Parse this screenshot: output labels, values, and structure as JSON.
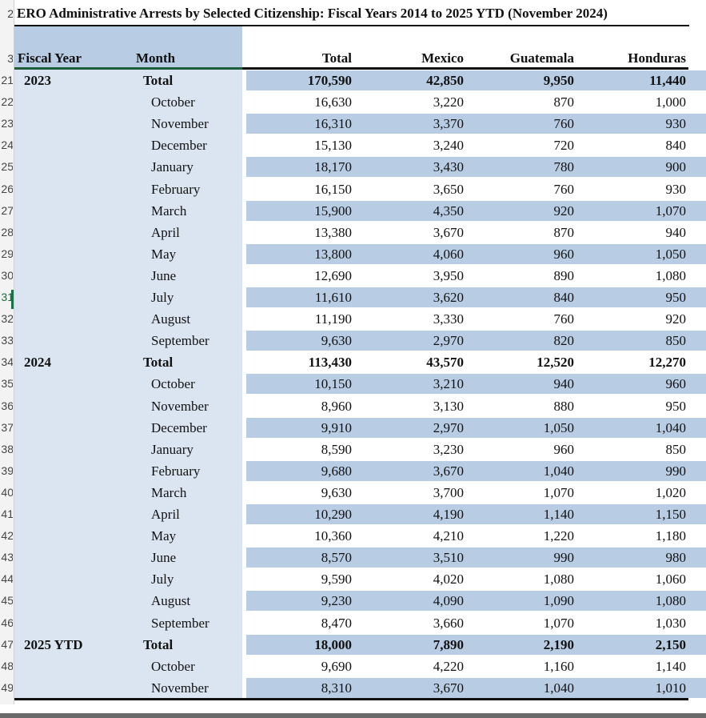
{
  "title": "ERO Administrative Arrests by Selected Citizenship: Fiscal Years 2014 to 2025 YTD (November 2024)",
  "headers": {
    "fiscal_year": "Fiscal Year",
    "month": "Month",
    "total": "Total",
    "mexico": "Mexico",
    "guatemala": "Guatemala",
    "honduras": "Honduras"
  },
  "row_numbers": [
    "2",
    "3",
    "21",
    "22",
    "23",
    "24",
    "25",
    "26",
    "27",
    "28",
    "29",
    "30",
    "31",
    "32",
    "33",
    "34",
    "35",
    "36",
    "37",
    "38",
    "39",
    "40",
    "41",
    "42",
    "43",
    "44",
    "45",
    "46",
    "47",
    "48",
    "49"
  ],
  "rows": [
    {
      "fy": "2023",
      "month": "Total",
      "total": "170,590",
      "mexico": "42,850",
      "guatemala": "9,950",
      "honduras": "11,440",
      "bold": true,
      "band": true
    },
    {
      "fy": "",
      "month": "October",
      "total": "16,630",
      "mexico": "3,220",
      "guatemala": "870",
      "honduras": "1,000",
      "bold": false,
      "band": false
    },
    {
      "fy": "",
      "month": "November",
      "total": "16,310",
      "mexico": "3,370",
      "guatemala": "760",
      "honduras": "930",
      "bold": false,
      "band": true
    },
    {
      "fy": "",
      "month": "December",
      "total": "15,130",
      "mexico": "3,240",
      "guatemala": "720",
      "honduras": "840",
      "bold": false,
      "band": false
    },
    {
      "fy": "",
      "month": "January",
      "total": "18,170",
      "mexico": "3,430",
      "guatemala": "780",
      "honduras": "900",
      "bold": false,
      "band": true
    },
    {
      "fy": "",
      "month": "February",
      "total": "16,150",
      "mexico": "3,650",
      "guatemala": "760",
      "honduras": "930",
      "bold": false,
      "band": false
    },
    {
      "fy": "",
      "month": "March",
      "total": "15,900",
      "mexico": "4,350",
      "guatemala": "920",
      "honduras": "1,070",
      "bold": false,
      "band": true
    },
    {
      "fy": "",
      "month": "April",
      "total": "13,380",
      "mexico": "3,670",
      "guatemala": "870",
      "honduras": "940",
      "bold": false,
      "band": false
    },
    {
      "fy": "",
      "month": "May",
      "total": "13,800",
      "mexico": "4,060",
      "guatemala": "960",
      "honduras": "1,050",
      "bold": false,
      "band": true
    },
    {
      "fy": "",
      "month": "June",
      "total": "12,690",
      "mexico": "3,950",
      "guatemala": "890",
      "honduras": "1,080",
      "bold": false,
      "band": false
    },
    {
      "fy": "",
      "month": "July",
      "total": "11,610",
      "mexico": "3,620",
      "guatemala": "840",
      "honduras": "950",
      "bold": false,
      "band": true
    },
    {
      "fy": "",
      "month": "August",
      "total": "11,190",
      "mexico": "3,330",
      "guatemala": "760",
      "honduras": "920",
      "bold": false,
      "band": false
    },
    {
      "fy": "",
      "month": "September",
      "total": "9,630",
      "mexico": "2,970",
      "guatemala": "820",
      "honduras": "850",
      "bold": false,
      "band": true
    },
    {
      "fy": "2024",
      "month": "Total",
      "total": "113,430",
      "mexico": "43,570",
      "guatemala": "12,520",
      "honduras": "12,270",
      "bold": true,
      "band": false
    },
    {
      "fy": "",
      "month": "October",
      "total": "10,150",
      "mexico": "3,210",
      "guatemala": "940",
      "honduras": "960",
      "bold": false,
      "band": true
    },
    {
      "fy": "",
      "month": "November",
      "total": "8,960",
      "mexico": "3,130",
      "guatemala": "880",
      "honduras": "950",
      "bold": false,
      "band": false
    },
    {
      "fy": "",
      "month": "December",
      "total": "9,910",
      "mexico": "2,970",
      "guatemala": "1,050",
      "honduras": "1,040",
      "bold": false,
      "band": true
    },
    {
      "fy": "",
      "month": "January",
      "total": "8,590",
      "mexico": "3,230",
      "guatemala": "960",
      "honduras": "850",
      "bold": false,
      "band": false
    },
    {
      "fy": "",
      "month": "February",
      "total": "9,680",
      "mexico": "3,670",
      "guatemala": "1,040",
      "honduras": "990",
      "bold": false,
      "band": true
    },
    {
      "fy": "",
      "month": "March",
      "total": "9,630",
      "mexico": "3,700",
      "guatemala": "1,070",
      "honduras": "1,020",
      "bold": false,
      "band": false
    },
    {
      "fy": "",
      "month": "April",
      "total": "10,290",
      "mexico": "4,190",
      "guatemala": "1,140",
      "honduras": "1,150",
      "bold": false,
      "band": true
    },
    {
      "fy": "",
      "month": "May",
      "total": "10,360",
      "mexico": "4,210",
      "guatemala": "1,220",
      "honduras": "1,180",
      "bold": false,
      "band": false
    },
    {
      "fy": "",
      "month": "June",
      "total": "8,570",
      "mexico": "3,510",
      "guatemala": "990",
      "honduras": "980",
      "bold": false,
      "band": true
    },
    {
      "fy": "",
      "month": "July",
      "total": "9,590",
      "mexico": "4,020",
      "guatemala": "1,080",
      "honduras": "1,060",
      "bold": false,
      "band": false
    },
    {
      "fy": "",
      "month": "August",
      "total": "9,230",
      "mexico": "4,090",
      "guatemala": "1,090",
      "honduras": "1,080",
      "bold": false,
      "band": true
    },
    {
      "fy": "",
      "month": "September",
      "total": "8,470",
      "mexico": "3,660",
      "guatemala": "1,070",
      "honduras": "1,030",
      "bold": false,
      "band": false
    },
    {
      "fy": "2025 YTD",
      "month": "Total",
      "total": "18,000",
      "mexico": "7,890",
      "guatemala": "2,190",
      "honduras": "2,150",
      "bold": true,
      "band": true
    },
    {
      "fy": "",
      "month": "October",
      "total": "9,690",
      "mexico": "4,220",
      "guatemala": "1,160",
      "honduras": "1,140",
      "bold": false,
      "band": false
    },
    {
      "fy": "",
      "month": "November",
      "total": "8,310",
      "mexico": "3,670",
      "guatemala": "1,040",
      "honduras": "1,010",
      "bold": false,
      "band": true
    }
  ],
  "colors": {
    "band": "#b8cce4",
    "left_shade": "#dbe5f1",
    "active_row_marker": "#1e7145"
  },
  "active_row": "31"
}
